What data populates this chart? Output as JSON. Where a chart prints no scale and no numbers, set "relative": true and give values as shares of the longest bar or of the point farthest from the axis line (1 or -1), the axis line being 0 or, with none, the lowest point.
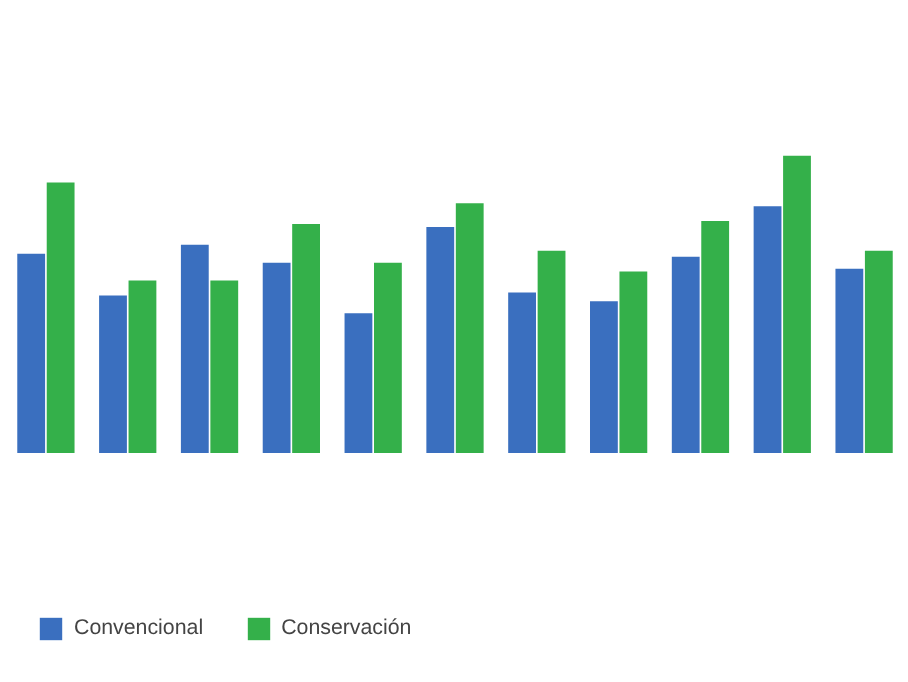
{
  "chart_data": {
    "type": "bar",
    "relative": true,
    "categories": [
      null,
      null,
      null,
      null,
      null,
      null,
      null,
      null,
      null,
      null,
      null
    ],
    "series": [
      {
        "name": "Convencional",
        "color": "#3a6fbf",
        "values": [
          0.67,
          0.53,
          0.7,
          0.64,
          0.47,
          0.76,
          0.54,
          0.51,
          0.66,
          0.83,
          0.62
        ]
      },
      {
        "name": "Conservación",
        "color": "#34b04a",
        "values": [
          0.91,
          0.58,
          0.58,
          0.77,
          0.64,
          0.84,
          0.68,
          0.61,
          0.78,
          1,
          0.68
        ]
      }
    ],
    "legend": "bottom left",
    "grid": false
  }
}
